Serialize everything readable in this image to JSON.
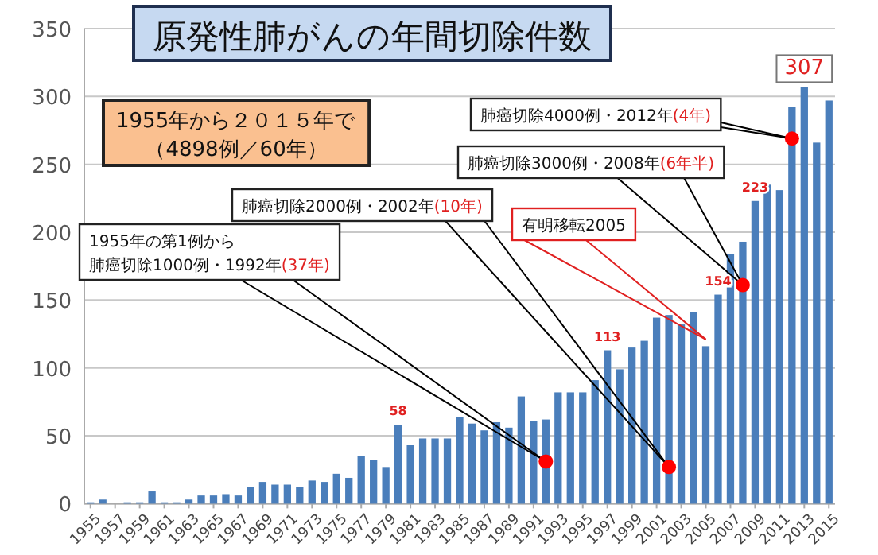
{
  "chart_data": {
    "type": "bar",
    "title": "原発性肺がんの年間切除件数",
    "x": [
      1955,
      1956,
      1957,
      1958,
      1959,
      1960,
      1961,
      1962,
      1963,
      1964,
      1965,
      1966,
      1967,
      1968,
      1969,
      1970,
      1971,
      1972,
      1973,
      1974,
      1975,
      1976,
      1977,
      1978,
      1979,
      1980,
      1981,
      1982,
      1983,
      1984,
      1985,
      1986,
      1987,
      1988,
      1989,
      1990,
      1991,
      1992,
      1993,
      1994,
      1995,
      1996,
      1997,
      1998,
      1999,
      2000,
      2001,
      2002,
      2003,
      2004,
      2005,
      2006,
      2007,
      2008,
      2009,
      2010,
      2011,
      2012,
      2013,
      2014,
      2015
    ],
    "values": [
      1,
      3,
      0,
      1,
      1,
      9,
      1,
      1,
      3,
      6,
      6,
      7,
      6,
      12,
      16,
      14,
      14,
      12,
      17,
      16,
      22,
      19,
      35,
      32,
      27,
      58,
      43,
      48,
      48,
      48,
      64,
      59,
      54,
      60,
      56,
      79,
      61,
      62,
      82,
      82,
      82,
      91,
      113,
      99,
      115,
      120,
      137,
      139,
      132,
      141,
      116,
      154,
      184,
      193,
      223,
      235,
      231,
      292,
      307,
      266,
      297
    ],
    "value_labels": [
      null,
      null,
      null,
      null,
      null,
      null,
      null,
      null,
      null,
      null,
      null,
      null,
      null,
      null,
      null,
      null,
      null,
      null,
      null,
      null,
      null,
      null,
      null,
      null,
      null,
      "58",
      null,
      null,
      null,
      null,
      null,
      null,
      null,
      null,
      null,
      null,
      null,
      null,
      null,
      null,
      null,
      null,
      "113",
      null,
      null,
      null,
      null,
      null,
      null,
      null,
      null,
      "154",
      null,
      null,
      "223",
      null,
      null,
      null,
      "307",
      null,
      null
    ],
    "color": "#4a7ebb",
    "xlim": [
      1954.5,
      2015.5
    ],
    "xticks": [
      1955,
      1957,
      1959,
      1961,
      1963,
      1965,
      1967,
      1969,
      1971,
      1973,
      1975,
      1977,
      1979,
      1981,
      1983,
      1985,
      1987,
      1989,
      1991,
      1993,
      1995,
      1997,
      1999,
      2001,
      2003,
      2005,
      2007,
      2009,
      2011,
      2013,
      2015
    ],
    "ylim": [
      0,
      350
    ],
    "yticks": [
      0,
      50,
      100,
      150,
      200,
      250,
      300,
      350
    ],
    "grid": "y",
    "annotations": [
      "1955年から２０１５年で（4898例／60年）",
      {
        "text": "1955年の第1例から肺癌切除1000例・1992年(37年)",
        "x": 1992,
        "y": 31
      },
      {
        "text": "肺癌切除2000例・2002年(10年)",
        "x": 2002,
        "y": 27
      },
      {
        "text": "有明移転2005",
        "x": 2005,
        "y": 121
      },
      {
        "text": "肺癌切除3000例・2008年(6年半)",
        "x": 2008,
        "y": 161
      },
      {
        "text": "肺癌切除4000例・2012年(4年)",
        "x": 2012,
        "y": 269
      }
    ]
  }
}
